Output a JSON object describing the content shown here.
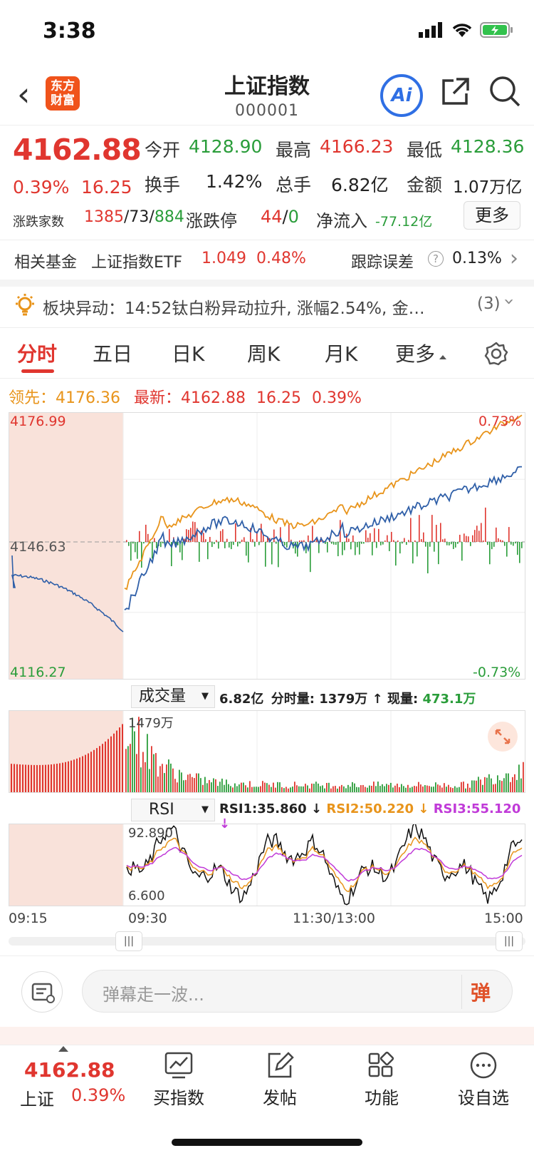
{
  "status_bar": {
    "time": "3:38"
  },
  "nav": {
    "logo_text": "东方财富",
    "title": "上证指数",
    "code": "000001",
    "ai_label": "Ai"
  },
  "quote": {
    "price": "4162.88",
    "change_pct": "0.39%",
    "change": "16.25",
    "open_label": "今开",
    "open": "4128.90",
    "high_label": "最高",
    "high": "4166.23",
    "low_label": "最低",
    "low": "4128.36",
    "turnover_label": "换手",
    "turnover": "1.42%",
    "volume_label": "总手",
    "volume": "6.82亿",
    "amount_label": "金额",
    "amount": "1.07万亿",
    "updown_label": "涨跌家数",
    "up_count": "1385",
    "flat_count": "73",
    "down_count": "884",
    "limit_label": "涨跌停",
    "limit_up": "44",
    "limit_down": "0",
    "netflow_label": "净流入",
    "netflow": "-77.12亿",
    "more_label": "更多"
  },
  "fund": {
    "label": "相关基金",
    "name": "上证指数ETF",
    "price": "1.049",
    "pct": "0.48%",
    "track_label": "跟踪误差",
    "track_value": "0.13%"
  },
  "alert": {
    "text": "板块异动：14:52钛白粉异动拉升, 涨幅2.54%, 金…",
    "count": "(3)"
  },
  "tabs": [
    "分时",
    "五日",
    "日K",
    "周K",
    "月K",
    "更多"
  ],
  "lead_line": {
    "lead_label": "领先：",
    "lead_value": "4176.36",
    "latest_label": "最新：",
    "latest_value": "4162.88",
    "change": "16.25",
    "pct": "0.39%"
  },
  "main_chart": {
    "y_top": "4176.99",
    "y_mid": "4146.63",
    "y_bottom": "4116.27",
    "pct_top": "0.73%",
    "pct_bottom": "-0.73%"
  },
  "volume_panel": {
    "selector": "成交量",
    "total": "6.82亿",
    "period_label": "分时量:",
    "period_value": "1379万",
    "now_label": "现量:",
    "now_value": "473.1万",
    "max_label": "1479万"
  },
  "rsi_panel": {
    "selector": "RSI",
    "rsi1": "RSI1:35.860",
    "rsi2": "RSI2:50.220",
    "rsi3": "RSI3:55.120",
    "top": "92.890",
    "bottom": "6.600"
  },
  "time_axis": {
    "t1": "09:15",
    "t2": "09:30",
    "t3": "11:30/13:00",
    "t4": "15:00"
  },
  "danmu": {
    "placeholder": "弹幕走一波...",
    "send_label": "弹"
  },
  "bottom_bar": {
    "price": "4162.88",
    "name": "上证",
    "pct": "0.39%",
    "items": [
      "买指数",
      "发帖",
      "功能",
      "设自选"
    ]
  },
  "colors": {
    "red": "#e0362f",
    "green": "#2a9d3a",
    "orange": "#e8941b",
    "blue": "#2f5fa8",
    "purple": "#c03ad8"
  }
}
